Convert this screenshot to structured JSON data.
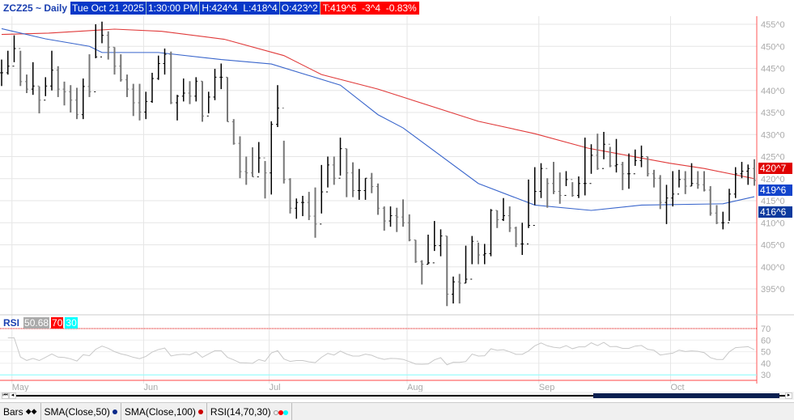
{
  "header": {
    "symbol": "ZCZ25 ~ Daily",
    "date": "Tue Oct 21 2025",
    "time": "1:30:00 PM",
    "high": "H:424^4",
    "low": "L:418^4",
    "open": "O:423^2",
    "last": "T:419^6",
    "change": "-3^4",
    "pct": "-0.83%"
  },
  "price_axis": {
    "labels": [
      "455^0",
      "450^0",
      "445^0",
      "440^0",
      "435^0",
      "430^0",
      "425^0",
      "420^0",
      "415^0",
      "410^0",
      "405^0",
      "400^0",
      "395^0"
    ],
    "values": [
      455,
      450,
      445,
      440,
      435,
      430,
      425,
      420,
      415,
      410,
      405,
      400,
      395
    ]
  },
  "price_markers": [
    {
      "text": "420^7",
      "color": "#e00000",
      "value": 420.9
    },
    {
      "text": "419^6",
      "color": "#1144cc",
      "value": 419.75
    },
    {
      "text": "416^6",
      "color": "#0b3a9e",
      "value": 416.75
    }
  ],
  "rsi": {
    "label": "RSI",
    "value": "50.68",
    "overbought": "70",
    "oversold": "30",
    "axis_labels": [
      "70",
      "60",
      "50",
      "40",
      "30"
    ],
    "axis_values": [
      70,
      60,
      50,
      40,
      30
    ]
  },
  "months": [
    {
      "label": "May",
      "bar": 1
    },
    {
      "label": "Jun",
      "bar": 22
    },
    {
      "label": "Jul",
      "bar": 42
    },
    {
      "label": "Aug",
      "bar": 64
    },
    {
      "label": "Sep",
      "bar": 85
    },
    {
      "label": "Oct",
      "bar": 106
    }
  ],
  "tabs": [
    {
      "label": "Bars"
    },
    {
      "label": "SMA(Close,50)"
    },
    {
      "label": "SMA(Close,100)"
    },
    {
      "label": "RSI(14,70,30)"
    }
  ],
  "colors": {
    "sma50": "#3a66cc",
    "sma100": "#e03a3a",
    "rsi": "#c8c8c8"
  },
  "chart_data": {
    "type": "ohlc",
    "ylim": [
      390,
      458
    ],
    "bars_hlc": [
      [
        447,
        441,
        444
      ],
      [
        449,
        443.6,
        445.5
      ],
      [
        452.5,
        446.4,
        449.5
      ],
      [
        449,
        441,
        442
      ],
      [
        443.6,
        439.4,
        440.3
      ],
      [
        446.4,
        439,
        441
      ],
      [
        440.9,
        434.8,
        437.8
      ],
      [
        443,
        438.7,
        441
      ],
      [
        449,
        440,
        444.6
      ],
      [
        445.5,
        438.5,
        440.3
      ],
      [
        442,
        436.6,
        439.7
      ],
      [
        441.2,
        435,
        437.8
      ],
      [
        440.6,
        433.5,
        434.5
      ],
      [
        442.7,
        433.5,
        440.9
      ],
      [
        448.2,
        438.5,
        439.7
      ],
      [
        455,
        447.3,
        447.6
      ],
      [
        455.6,
        450.7,
        452.5
      ],
      [
        453.4,
        447,
        449.8
      ],
      [
        449.8,
        443.6,
        445.5
      ],
      [
        448.2,
        442,
        442.4
      ],
      [
        443.6,
        438.5,
        440.3
      ],
      [
        441.5,
        434.2,
        437.2
      ],
      [
        441.5,
        433.2,
        435.1
      ],
      [
        439.7,
        433.5,
        437.5
      ],
      [
        444,
        437.2,
        442.7
      ],
      [
        447.9,
        442.4,
        446.1
      ],
      [
        449.5,
        443.6,
        448.2
      ],
      [
        448.8,
        436.9,
        437.2
      ],
      [
        439,
        433.2,
        438.7
      ],
      [
        442.7,
        437.5,
        439.4
      ],
      [
        442.1,
        436.9,
        438.7
      ],
      [
        443,
        437.5,
        442.1
      ],
      [
        442.1,
        432.9,
        434.2
      ],
      [
        439.7,
        434.8,
        438.5
      ],
      [
        444.9,
        437.8,
        443
      ],
      [
        446.1,
        440.3,
        443
      ],
      [
        443,
        432.9,
        432.9
      ],
      [
        433.5,
        427.7,
        428
      ],
      [
        429.6,
        420.1,
        421.6
      ],
      [
        425,
        418.6,
        421.3
      ],
      [
        427.1,
        420.4,
        420.4
      ],
      [
        428.3,
        421.3,
        424.7
      ],
      [
        424,
        415.5,
        421.3
      ],
      [
        433,
        416.4,
        432.3
      ],
      [
        441.2,
        431.7,
        436
      ],
      [
        428.6,
        418.9,
        419.8
      ],
      [
        420.1,
        412.1,
        413.3
      ],
      [
        415.5,
        410.9,
        414.6
      ],
      [
        416.1,
        411.5,
        414.6
      ],
      [
        417,
        410.6,
        411.5
      ],
      [
        418,
        406.6,
        409.7
      ],
      [
        423.1,
        412.1,
        417
      ],
      [
        425,
        418,
        423.1
      ],
      [
        425,
        418.6,
        420.1
      ],
      [
        429.3,
        420.7,
        426.8
      ],
      [
        426.8,
        415.8,
        421.3
      ],
      [
        423.7,
        415.8,
        417.3
      ],
      [
        422.2,
        415.2,
        417.3
      ],
      [
        420.1,
        415.2,
        420.1
      ],
      [
        421.3,
        416.7,
        418.2
      ],
      [
        418.9,
        411.8,
        413.3
      ],
      [
        413.7,
        408.2,
        410.4
      ],
      [
        413.7,
        409.1,
        411.6
      ],
      [
        413.4,
        407.9,
        411.3
      ],
      [
        415.3,
        409.1,
        410
      ],
      [
        411.9,
        405.8,
        406.1
      ],
      [
        406.1,
        400.9,
        401.2
      ],
      [
        401.5,
        396,
        400.6
      ],
      [
        407.3,
        400.6,
        400.9
      ],
      [
        410.4,
        403.6,
        404.8
      ],
      [
        408.5,
        402.4,
        407
      ],
      [
        407,
        391.1,
        393.8
      ],
      [
        397.8,
        391.7,
        396.6
      ],
      [
        398.4,
        391.7,
        396.3
      ],
      [
        404.8,
        396.3,
        397.2
      ],
      [
        407,
        400.6,
        405.8
      ],
      [
        405.5,
        400.6,
        402.7
      ],
      [
        405.2,
        400.6,
        403
      ],
      [
        413.1,
        402.4,
        412.8
      ],
      [
        412.8,
        408.8,
        410.7
      ],
      [
        415.6,
        410.4,
        411.6
      ],
      [
        413.7,
        407.9,
        408.8
      ],
      [
        409.1,
        404.5,
        405.2
      ],
      [
        410,
        402.7,
        405.2
      ],
      [
        419.8,
        408.8,
        409.4
      ],
      [
        422.6,
        414,
        417.1
      ],
      [
        423.5,
        415.6,
        422.3
      ],
      [
        420.1,
        413.4,
        418.9
      ],
      [
        423.8,
        416.5,
        417.1
      ],
      [
        421.4,
        414.3,
        416.2
      ],
      [
        421.7,
        418.3,
        419.8
      ],
      [
        419.2,
        415.9,
        416.2
      ],
      [
        420.5,
        415.6,
        418.9
      ],
      [
        429.3,
        416.2,
        418.9
      ],
      [
        427.8,
        421.1,
        425.3
      ],
      [
        430.2,
        422,
        422.3
      ],
      [
        430.6,
        424.4,
        427.8
      ],
      [
        427.2,
        422.6,
        422.9
      ],
      [
        429,
        421.4,
        423.2
      ],
      [
        423.8,
        417.4,
        421.1
      ],
      [
        425.7,
        417.7,
        421.1
      ],
      [
        426.6,
        422.9,
        424.1
      ],
      [
        427.5,
        422.6,
        425
      ],
      [
        425,
        420.5,
        421.1
      ],
      [
        422,
        418,
        420.1
      ],
      [
        420.8,
        413.1,
        414.6
      ],
      [
        418.6,
        409.7,
        415.6
      ],
      [
        421.7,
        413.7,
        416.5
      ],
      [
        422,
        418,
        419.8
      ],
      [
        421.7,
        416.5,
        418.3
      ],
      [
        423.5,
        418.3,
        418.9
      ],
      [
        421.7,
        417.7,
        418.6
      ],
      [
        421.7,
        417.1,
        417.4
      ],
      [
        418.3,
        411.6,
        412.2
      ],
      [
        414,
        409.7,
        410
      ],
      [
        412.5,
        408.5,
        410
      ],
      [
        417.7,
        410.4,
        416.5
      ],
      [
        422.6,
        415.6,
        421.1
      ],
      [
        423.8,
        420.1,
        421.7
      ],
      [
        423.2,
        418.6,
        422.3
      ],
      [
        424.4,
        418.4,
        419.6
      ]
    ],
    "sma50": [
      [
        0,
        454
      ],
      [
        7,
        451.7
      ],
      [
        14,
        450
      ],
      [
        16,
        448.6
      ],
      [
        25,
        448.6
      ],
      [
        35,
        447
      ],
      [
        43,
        446
      ],
      [
        54,
        441.2
      ],
      [
        60,
        434.5
      ],
      [
        64,
        431.5
      ],
      [
        76,
        418.9
      ],
      [
        85,
        414
      ],
      [
        94,
        412.8
      ],
      [
        102,
        414
      ],
      [
        115,
        414.3
      ],
      [
        120,
        415.9
      ]
    ],
    "sma100": [
      [
        0,
        452.7
      ],
      [
        7.5,
        453
      ],
      [
        18,
        453.9
      ],
      [
        25.5,
        453.4
      ],
      [
        35.5,
        451.6
      ],
      [
        45,
        447.9
      ],
      [
        51,
        443.6
      ],
      [
        60,
        440.3
      ],
      [
        76,
        433
      ],
      [
        85,
        430.2
      ],
      [
        93.5,
        426.9
      ],
      [
        106.5,
        423.5
      ],
      [
        112,
        422.3
      ],
      [
        120,
        420
      ]
    ]
  }
}
